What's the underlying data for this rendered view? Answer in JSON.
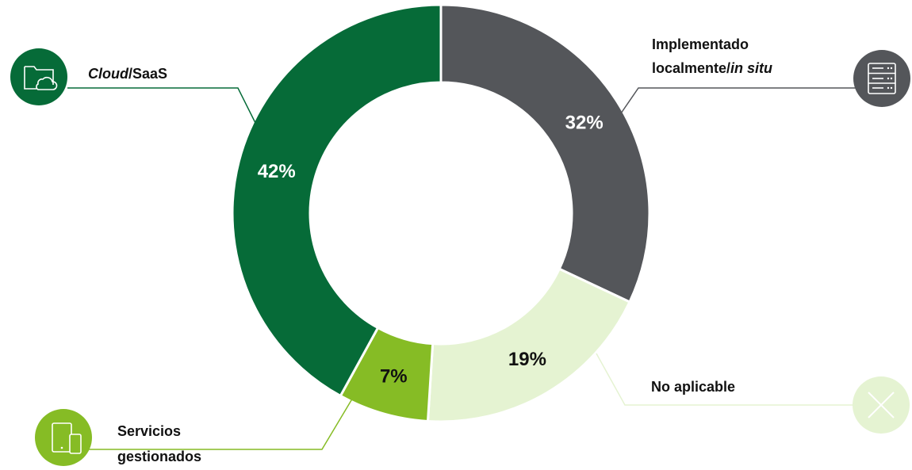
{
  "chart_data": {
    "type": "pie",
    "donut": true,
    "slices": [
      {
        "key": "cloud",
        "value": 42,
        "label": "42%",
        "color": "#066b38",
        "text_color": "#ffffff"
      },
      {
        "key": "onprem",
        "value": 32,
        "label": "32%",
        "color": "#54565a",
        "text_color": "#ffffff"
      },
      {
        "key": "na",
        "value": 19,
        "label": "19%",
        "color": "#e5f3d2",
        "text_color": "#111111"
      },
      {
        "key": "managed",
        "value": 7,
        "label": "7%",
        "color": "#86bc25",
        "text_color": "#111111"
      }
    ]
  },
  "legend": {
    "cloud": {
      "italic": "Cloud",
      "rest": "/SaaS",
      "icon": "cloud-folder-icon"
    },
    "onprem": {
      "line1": "Implementado",
      "line2_plain": "localmente/",
      "line2_italic": "in situ",
      "icon": "server-icon"
    },
    "na": {
      "text": "No aplicable",
      "icon": "close-icon"
    },
    "managed": {
      "line1": "Servicios",
      "line2": "gestionados",
      "icon": "devices-icon"
    }
  }
}
